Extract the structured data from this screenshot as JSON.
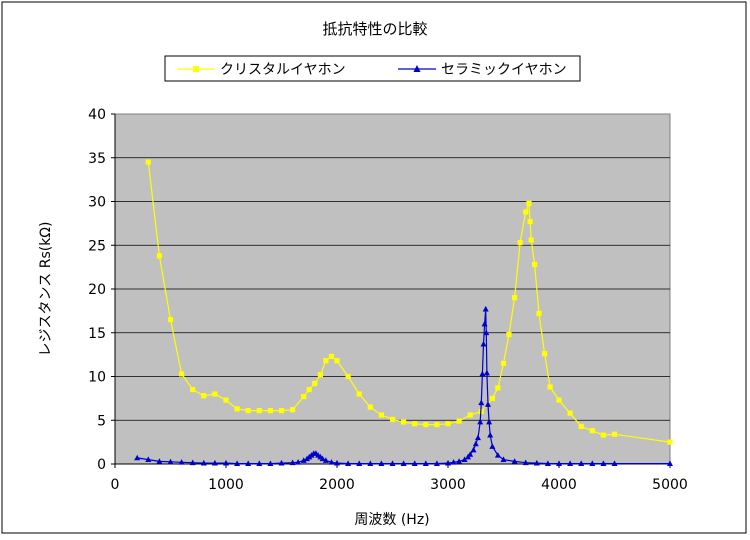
{
  "chart_data": {
    "type": "line",
    "title": "抵抗特性の比較",
    "xlabel": "周波数 (Hz)",
    "ylabel": "レジスタンス Rs(kΩ)",
    "xlim": [
      0,
      5000
    ],
    "ylim": [
      0,
      40
    ],
    "x_ticks": [
      0,
      1000,
      2000,
      3000,
      4000,
      5000
    ],
    "y_ticks": [
      0,
      5,
      10,
      15,
      20,
      25,
      30,
      35,
      40
    ],
    "grid": "horizontal",
    "legend_position": "top",
    "plot_background": "#c0c0c0",
    "series": [
      {
        "name": "クリスタルイヤホン",
        "color": "#ffff00",
        "marker": "square",
        "points": [
          [
            300,
            34.5
          ],
          [
            400,
            23.8
          ],
          [
            500,
            16.5
          ],
          [
            600,
            10.3
          ],
          [
            700,
            8.5
          ],
          [
            800,
            7.8
          ],
          [
            900,
            8.0
          ],
          [
            1000,
            7.3
          ],
          [
            1100,
            6.3
          ],
          [
            1200,
            6.1
          ],
          [
            1300,
            6.1
          ],
          [
            1400,
            6.1
          ],
          [
            1500,
            6.1
          ],
          [
            1600,
            6.2
          ],
          [
            1700,
            7.7
          ],
          [
            1750,
            8.5
          ],
          [
            1800,
            9.2
          ],
          [
            1850,
            10.2
          ],
          [
            1900,
            11.8
          ],
          [
            1950,
            12.3
          ],
          [
            2000,
            11.8
          ],
          [
            2100,
            10.0
          ],
          [
            2200,
            8.0
          ],
          [
            2300,
            6.5
          ],
          [
            2400,
            5.6
          ],
          [
            2500,
            5.1
          ],
          [
            2600,
            4.8
          ],
          [
            2700,
            4.6
          ],
          [
            2800,
            4.5
          ],
          [
            2900,
            4.5
          ],
          [
            3000,
            4.6
          ],
          [
            3100,
            4.9
          ],
          [
            3200,
            5.6
          ],
          [
            3300,
            6.0
          ],
          [
            3400,
            7.5
          ],
          [
            3450,
            8.7
          ],
          [
            3500,
            11.5
          ],
          [
            3550,
            14.8
          ],
          [
            3600,
            19.0
          ],
          [
            3650,
            25.3
          ],
          [
            3700,
            28.8
          ],
          [
            3730,
            29.8
          ],
          [
            3740,
            27.7
          ],
          [
            3750,
            25.6
          ],
          [
            3780,
            22.8
          ],
          [
            3820,
            17.2
          ],
          [
            3870,
            12.6
          ],
          [
            3920,
            8.8
          ],
          [
            4000,
            7.3
          ],
          [
            4100,
            5.8
          ],
          [
            4200,
            4.3
          ],
          [
            4300,
            3.8
          ],
          [
            4400,
            3.3
          ],
          [
            4500,
            3.4
          ],
          [
            5000,
            2.5
          ]
        ]
      },
      {
        "name": "セラミックイヤホン",
        "color": "#0000cc",
        "marker": "triangle",
        "points": [
          [
            200,
            0.7
          ],
          [
            300,
            0.5
          ],
          [
            400,
            0.3
          ],
          [
            500,
            0.25
          ],
          [
            600,
            0.2
          ],
          [
            700,
            0.15
          ],
          [
            800,
            0.1
          ],
          [
            900,
            0.1
          ],
          [
            1000,
            0.1
          ],
          [
            1100,
            0.05
          ],
          [
            1200,
            0.05
          ],
          [
            1300,
            0.05
          ],
          [
            1400,
            0.05
          ],
          [
            1500,
            0.1
          ],
          [
            1600,
            0.15
          ],
          [
            1650,
            0.2
          ],
          [
            1700,
            0.4
          ],
          [
            1730,
            0.6
          ],
          [
            1750,
            0.8
          ],
          [
            1770,
            1.0
          ],
          [
            1790,
            1.2
          ],
          [
            1810,
            1.2
          ],
          [
            1830,
            1.0
          ],
          [
            1850,
            0.8
          ],
          [
            1870,
            0.6
          ],
          [
            1900,
            0.4
          ],
          [
            1950,
            0.2
          ],
          [
            2000,
            0.1
          ],
          [
            2100,
            0.05
          ],
          [
            2200,
            0.05
          ],
          [
            2300,
            0.05
          ],
          [
            2400,
            0.05
          ],
          [
            2500,
            0.05
          ],
          [
            2600,
            0.05
          ],
          [
            2700,
            0.05
          ],
          [
            2800,
            0.05
          ],
          [
            2900,
            0.05
          ],
          [
            3000,
            0.1
          ],
          [
            3050,
            0.2
          ],
          [
            3100,
            0.3
          ],
          [
            3150,
            0.5
          ],
          [
            3180,
            0.8
          ],
          [
            3200,
            1.1
          ],
          [
            3230,
            1.6
          ],
          [
            3250,
            2.3
          ],
          [
            3270,
            3.0
          ],
          [
            3290,
            4.8
          ],
          [
            3300,
            7.0
          ],
          [
            3310,
            10.3
          ],
          [
            3320,
            13.7
          ],
          [
            3330,
            16.0
          ],
          [
            3340,
            17.7
          ],
          [
            3345,
            15.0
          ],
          [
            3350,
            10.4
          ],
          [
            3360,
            6.8
          ],
          [
            3370,
            4.8
          ],
          [
            3380,
            3.3
          ],
          [
            3400,
            2.0
          ],
          [
            3450,
            1.0
          ],
          [
            3500,
            0.5
          ],
          [
            3600,
            0.3
          ],
          [
            3700,
            0.15
          ],
          [
            3800,
            0.1
          ],
          [
            3900,
            0.05
          ],
          [
            4000,
            0.05
          ],
          [
            4100,
            0.05
          ],
          [
            4200,
            0.05
          ],
          [
            4300,
            0.05
          ],
          [
            4400,
            0.05
          ],
          [
            4500,
            0.05
          ],
          [
            5000,
            0.05
          ]
        ]
      }
    ]
  }
}
